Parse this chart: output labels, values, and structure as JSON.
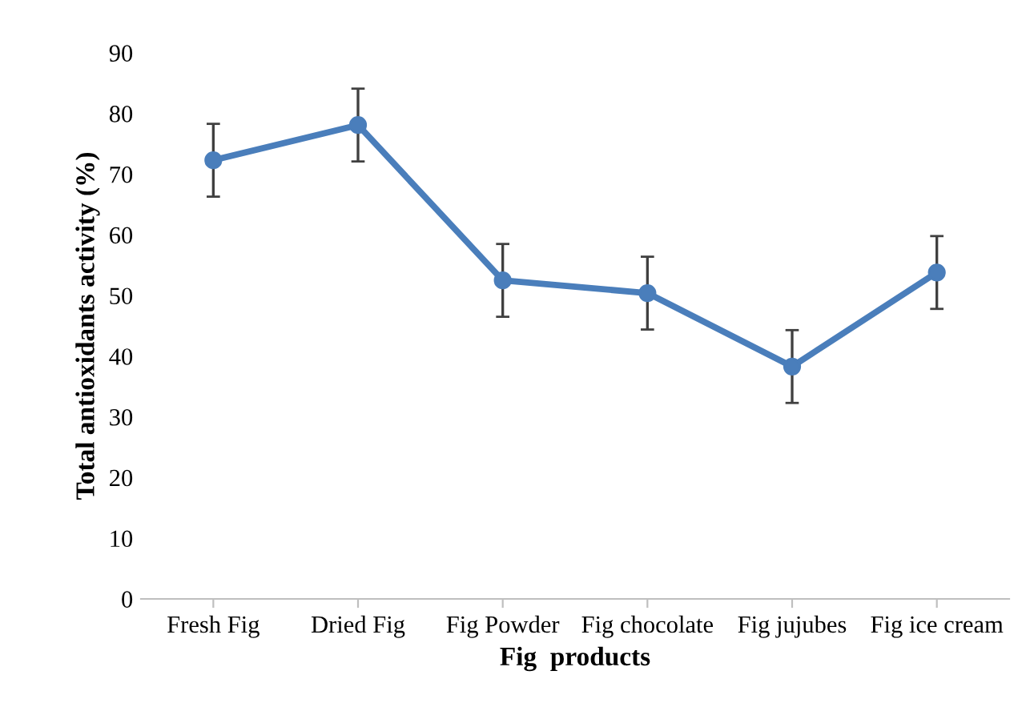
{
  "chart_data": {
    "type": "line",
    "xlabel": "Fig  products",
    "ylabel": "Total antioxidants activity (%)",
    "categories": [
      "Fresh Fig",
      "Dried Fig",
      "Fig Powder",
      "Fig chocolate",
      "Fig jujubes",
      "Fig ice cream"
    ],
    "series": [
      {
        "color": "#4a7ebb",
        "values": [
          72.3,
          78.1,
          52.5,
          50.4,
          38.3,
          53.8
        ],
        "errors": [
          6,
          6,
          6,
          6,
          6,
          6
        ]
      }
    ],
    "ylim": [
      0,
      90
    ],
    "yticks": [
      0,
      10,
      20,
      30,
      40,
      50,
      60,
      70,
      80,
      90
    ],
    "grid": false,
    "legend": false,
    "marker": "circle",
    "line_style": "solid"
  }
}
